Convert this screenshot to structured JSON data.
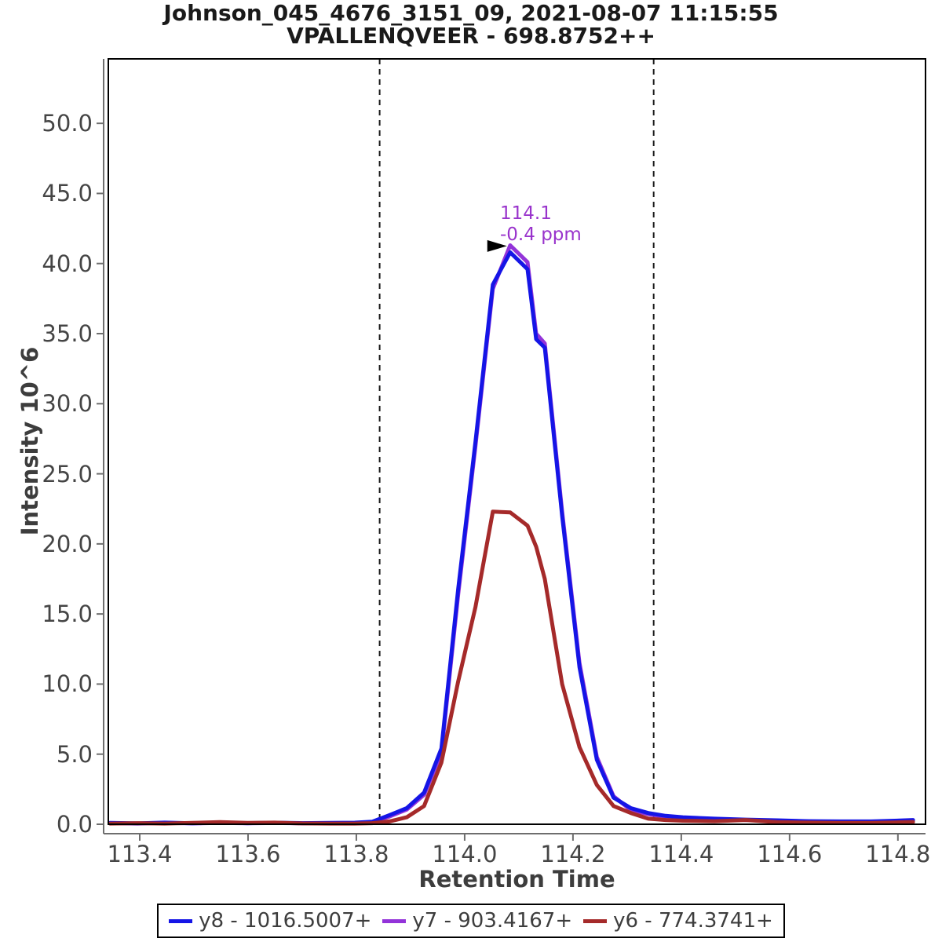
{
  "chart_data": {
    "type": "line",
    "title": "Johnson_045_4676_3151_09, 2021-08-07 11:15:55",
    "subtitle": "VPALLENQVEER - 698.8752++",
    "xlabel": "Retention Time",
    "ylabel": "Intensity 10^6",
    "xlim": [
      113.342,
      114.851
    ],
    "ylim": [
      0,
      54.6
    ],
    "grid": false,
    "legend_position": "bottom",
    "x_ticks": [
      {
        "value": 113.4,
        "label": "113.4"
      },
      {
        "value": 113.6,
        "label": "113.6"
      },
      {
        "value": 113.8,
        "label": "113.8"
      },
      {
        "value": 114.0,
        "label": "114.0"
      },
      {
        "value": 114.2,
        "label": "114.2"
      },
      {
        "value": 114.4,
        "label": "114.4"
      },
      {
        "value": 114.6,
        "label": "114.6"
      },
      {
        "value": 114.8,
        "label": "114.8"
      }
    ],
    "y_ticks": [
      {
        "value": 0,
        "label": "0.0"
      },
      {
        "value": 5,
        "label": "5.0"
      },
      {
        "value": 10,
        "label": "10.0"
      },
      {
        "value": 15,
        "label": "15.0"
      },
      {
        "value": 20,
        "label": "20.0"
      },
      {
        "value": 25,
        "label": "25.0"
      },
      {
        "value": 30,
        "label": "30.0"
      },
      {
        "value": 35,
        "label": "35.0"
      },
      {
        "value": 40,
        "label": "40.0"
      },
      {
        "value": 45,
        "label": "45.0"
      },
      {
        "value": 50,
        "label": "50.0"
      }
    ],
    "integration_boundaries": [
      113.843,
      114.349
    ],
    "peak_annotation": {
      "rt_label": "114.1",
      "ppm_label": "-0.4 ppm",
      "rt": 114.078,
      "intensity": 41.25,
      "color": "#9933cc",
      "arrow": true
    },
    "rt": [
      113.345,
      113.396,
      113.446,
      113.497,
      113.548,
      113.599,
      113.649,
      113.7,
      113.751,
      113.797,
      113.829,
      113.861,
      113.893,
      113.925,
      113.957,
      113.988,
      114.02,
      114.052,
      114.084,
      114.116,
      114.132,
      114.148,
      114.18,
      114.212,
      114.244,
      114.275,
      114.307,
      114.339,
      114.371,
      114.403,
      114.461,
      114.519,
      114.577,
      114.635,
      114.693,
      114.751,
      114.794,
      114.828
    ],
    "series": [
      {
        "name": "y8 - 1016.5007+",
        "color": "#1515e6",
        "intensities": [
          0.1,
          0.06,
          0.12,
          0.07,
          0.12,
          0.08,
          0.11,
          0.08,
          0.1,
          0.11,
          0.18,
          0.65,
          1.15,
          2.25,
          5.4,
          16.8,
          27.3,
          38.5,
          40.8,
          39.6,
          34.6,
          34.0,
          22.0,
          11.2,
          4.6,
          1.9,
          1.15,
          0.8,
          0.6,
          0.5,
          0.4,
          0.33,
          0.28,
          0.22,
          0.2,
          0.2,
          0.25,
          0.3
        ]
      },
      {
        "name": "y7 - 903.4167+",
        "color": "#9333d9",
        "intensities": [
          0.08,
          0.05,
          0.1,
          0.06,
          0.1,
          0.07,
          0.09,
          0.07,
          0.08,
          0.09,
          0.15,
          0.55,
          1.05,
          2.1,
          5.1,
          16.4,
          27.0,
          38.2,
          41.3,
          40.1,
          35.0,
          34.3,
          22.3,
          11.5,
          4.8,
          2.0,
          1.0,
          0.72,
          0.52,
          0.44,
          0.36,
          0.3,
          0.25,
          0.2,
          0.18,
          0.18,
          0.22,
          0.27
        ]
      },
      {
        "name": "y6 - 774.3741+",
        "color": "#a52a2a",
        "intensities": [
          0.05,
          0.08,
          0.05,
          0.1,
          0.15,
          0.1,
          0.12,
          0.06,
          0.05,
          0.05,
          0.08,
          0.2,
          0.5,
          1.3,
          4.4,
          10.2,
          15.5,
          22.3,
          22.25,
          21.3,
          19.8,
          17.5,
          10.0,
          5.5,
          2.8,
          1.3,
          0.8,
          0.4,
          0.3,
          0.25,
          0.22,
          0.3,
          0.15,
          0.12,
          0.1,
          0.1,
          0.13,
          0.16
        ]
      }
    ],
    "style": {
      "frame_color": "#000000",
      "axis_color": "#6e6e6e",
      "tick_label_color": "#454545",
      "boundary_color": "#1a1a1a",
      "arrow_color": "#000000"
    }
  }
}
